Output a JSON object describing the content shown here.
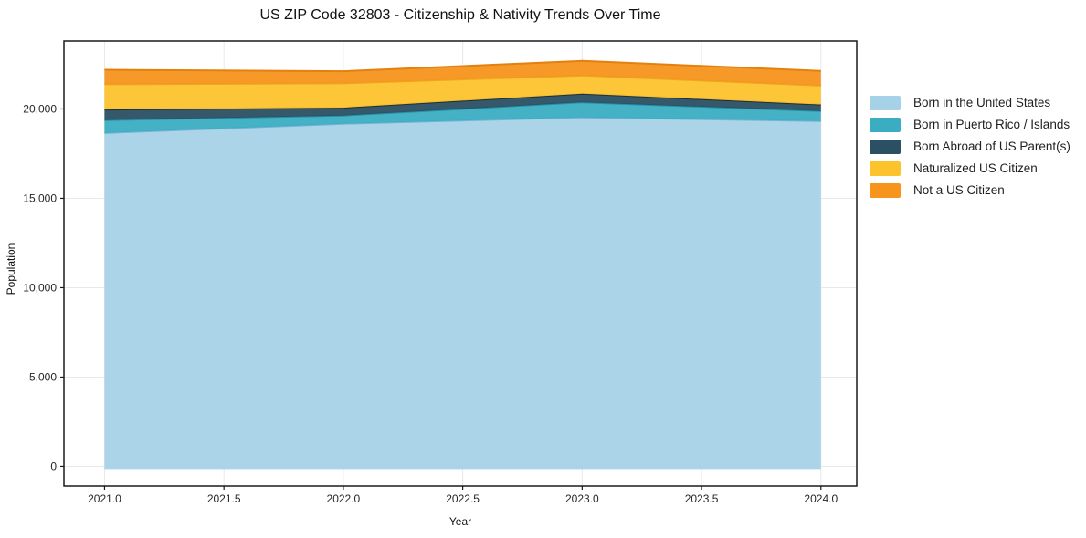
{
  "title": "US ZIP Code 32803 - Citizenship & Nativity Trends Over Time",
  "chart_data": {
    "type": "area",
    "stacked": true,
    "title": "US ZIP Code 32803 - Citizenship & Nativity Trends Over Time",
    "xlabel": "Year",
    "ylabel": "Population",
    "x": [
      2021,
      2022,
      2023,
      2024
    ],
    "series": [
      {
        "name": "Born in the United States",
        "color": "#a6d2e8",
        "edge_color": "#74b3d4",
        "values": [
          18650,
          19170,
          19530,
          19320
        ]
      },
      {
        "name": "Born in Puerto Rico / Islands",
        "color": "#3badc2",
        "edge_color": "#2591a8",
        "values": [
          720,
          460,
          840,
          560
        ]
      },
      {
        "name": "Born Abroad of US Parent(s)",
        "color": "#2b4f63",
        "edge_color": "#182f3e",
        "values": [
          600,
          440,
          480,
          370
        ]
      },
      {
        "name": "Naturalized US Citizen",
        "color": "#fcc32d",
        "edge_color": "#eda91c",
        "values": [
          1410,
          1360,
          1020,
          1055
        ]
      },
      {
        "name": "Not a US Citizen",
        "color": "#f7941e",
        "edge_color": "#e4800d",
        "values": [
          815,
          680,
          820,
          820
        ]
      }
    ],
    "totals": [
      22195,
      22110,
      22690,
      22125
    ],
    "xticks": [
      2021.0,
      2021.5,
      2022.0,
      2022.5,
      2023.0,
      2023.5,
      2024.0
    ],
    "yticks": [
      0,
      5000,
      10000,
      15000,
      20000
    ],
    "xlim": [
      2020.83,
      2024.15
    ],
    "ylim": [
      -1100,
      23800
    ],
    "baseline": -150,
    "grid": true,
    "grid_color": "#e8e8e8",
    "spine_color": "#1a1a1a",
    "tick_label_color": "#262626",
    "legend_position": "right"
  }
}
